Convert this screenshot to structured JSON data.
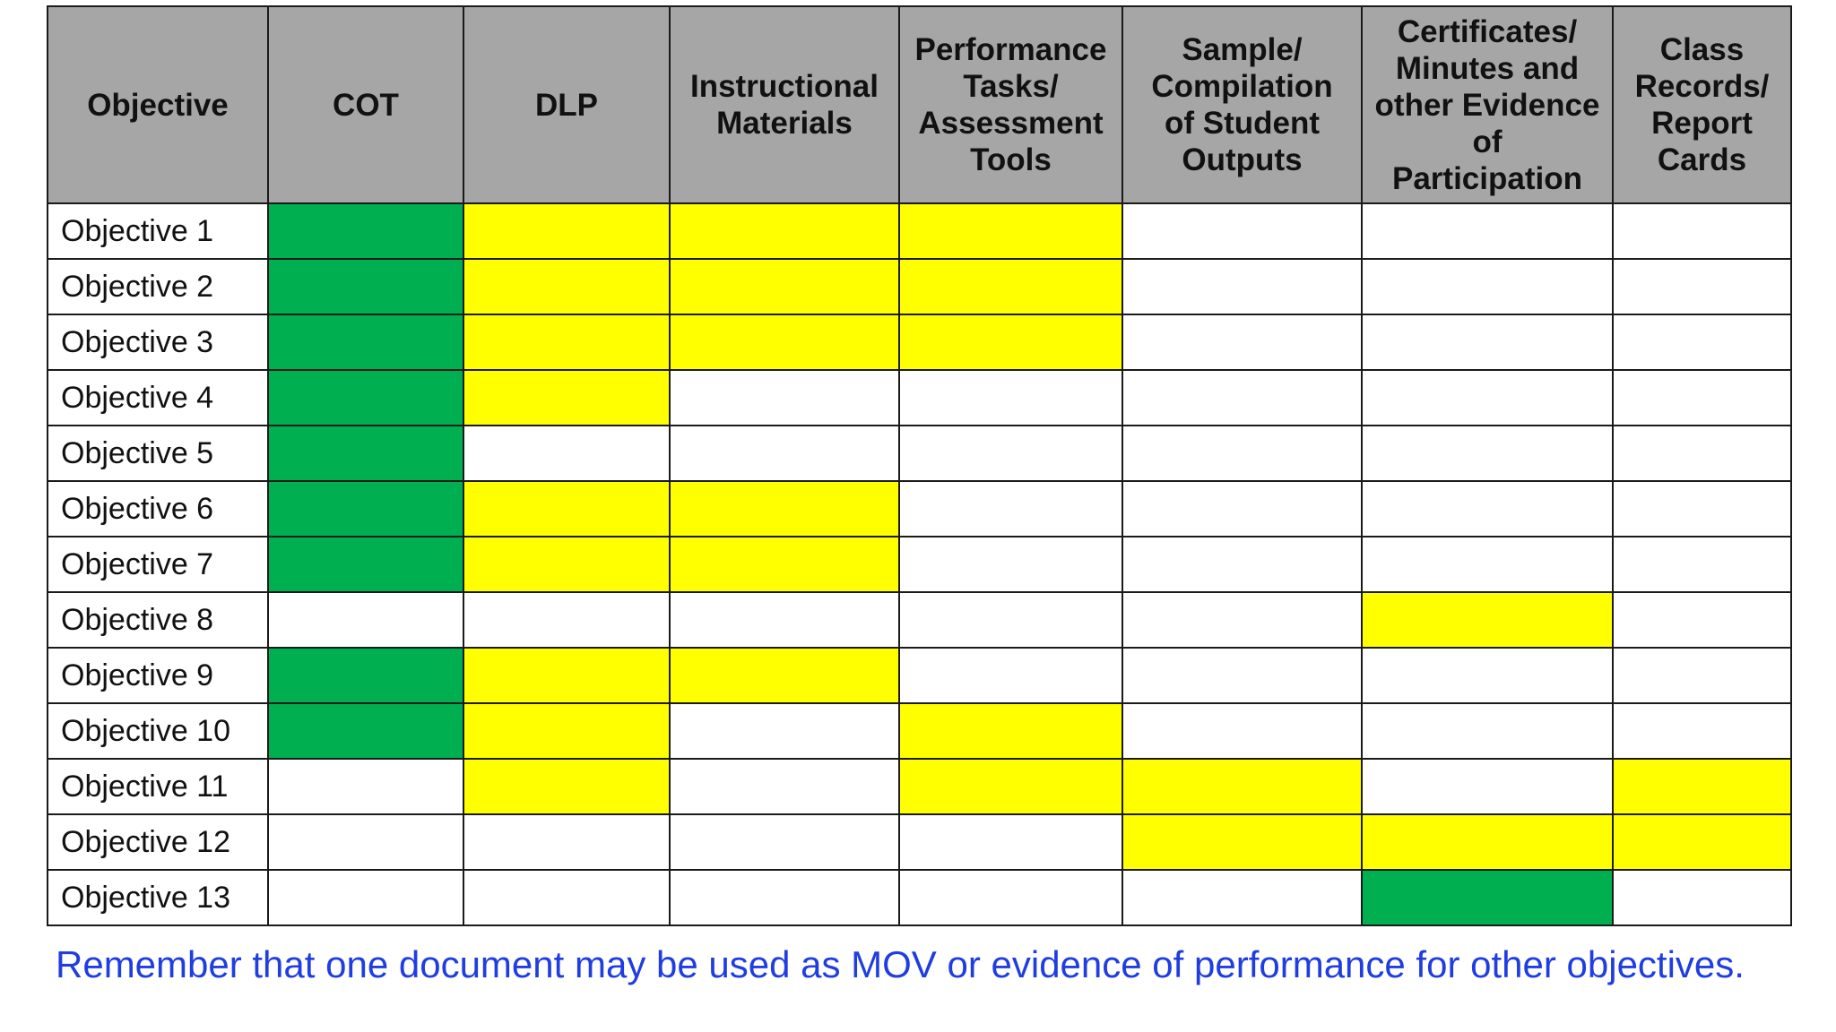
{
  "table": {
    "headers": [
      "Objective",
      "COT",
      "DLP",
      "Instructional\nMaterials",
      "Performance\nTasks/\nAssessment\nTools",
      "Sample/\nCompilation\nof Student\nOutputs",
      "Certificates/\nMinutes and\nother Evidence\nof\nParticipation",
      "Class\nRecords/\nReport\nCards"
    ],
    "row_labels": [
      "Objective 1",
      "Objective 2",
      "Objective 3",
      "Objective 4",
      "Objective 5",
      "Objective 6",
      "Objective 7",
      "Objective 8",
      "Objective 9",
      "Objective 10",
      "Objective 11",
      "Objective 12",
      "Objective 13"
    ],
    "legend_colors": {
      "green": "#00b050",
      "yellow": "#ffff00",
      "white": "#ffffff",
      "header_gray": "#a6a6a6"
    },
    "cell_marks": [
      [
        "green",
        "yellow",
        "yellow",
        "yellow",
        "white",
        "white",
        "white"
      ],
      [
        "green",
        "yellow",
        "yellow",
        "yellow",
        "white",
        "white",
        "white"
      ],
      [
        "green",
        "yellow",
        "yellow",
        "yellow",
        "white",
        "white",
        "white"
      ],
      [
        "green",
        "yellow",
        "white",
        "white",
        "white",
        "white",
        "white"
      ],
      [
        "green",
        "white",
        "white",
        "white",
        "white",
        "white",
        "white"
      ],
      [
        "green",
        "yellow",
        "yellow",
        "white",
        "white",
        "white",
        "white"
      ],
      [
        "green",
        "yellow",
        "yellow",
        "white",
        "white",
        "white",
        "white"
      ],
      [
        "white",
        "white",
        "white",
        "white",
        "white",
        "yellow",
        "white"
      ],
      [
        "green",
        "yellow",
        "yellow",
        "white",
        "white",
        "white",
        "white"
      ],
      [
        "green",
        "yellow",
        "white",
        "yellow",
        "white",
        "white",
        "white"
      ],
      [
        "white",
        "yellow",
        "white",
        "yellow",
        "yellow",
        "white",
        "yellow"
      ],
      [
        "white",
        "white",
        "white",
        "white",
        "yellow",
        "yellow",
        "yellow"
      ],
      [
        "white",
        "white",
        "white",
        "white",
        "white",
        "green",
        "white"
      ]
    ]
  },
  "footer": {
    "note": "Remember that one document may be used as MOV or evidence of performance for other objectives.",
    "note_color": "#1f3de0"
  }
}
